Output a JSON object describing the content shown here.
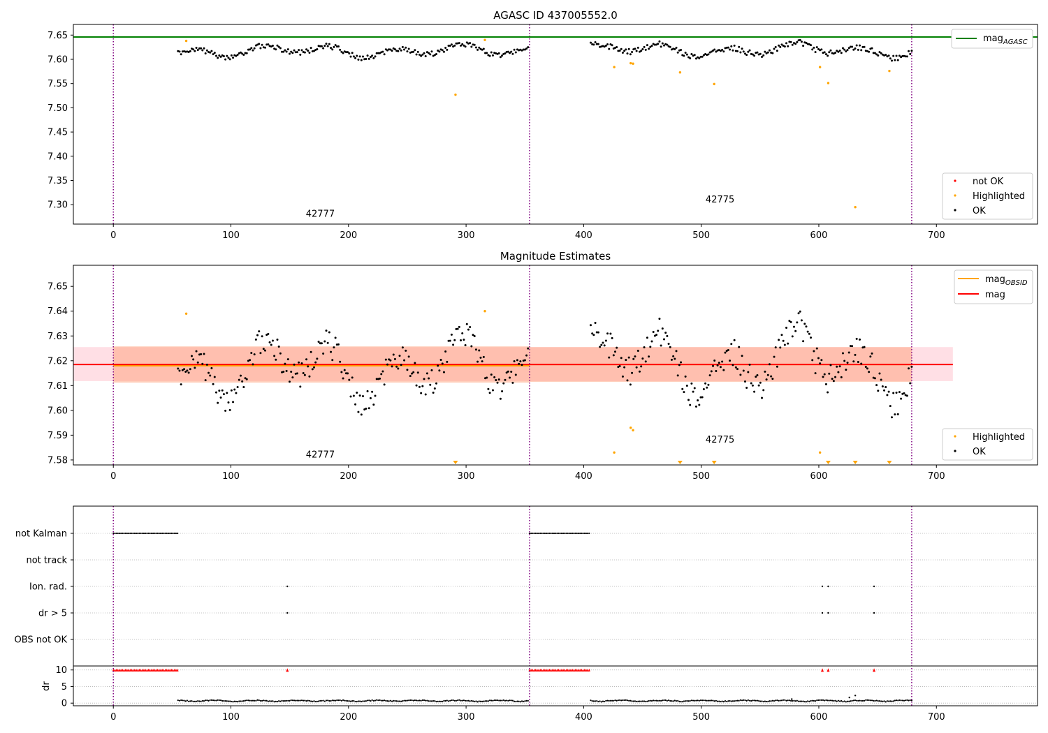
{
  "figure": {
    "title": "AGASC ID 437005552.0",
    "subtitle": "Magnitude Estimates"
  },
  "colors": {
    "ok": "#000000",
    "highlighted": "#ffa500",
    "not_ok": "#ff0000",
    "mag_agasc": "#008000",
    "mag_obsid": "#ffa500",
    "mag": "#ff0000",
    "obs_boundary": "#800080",
    "band_obsid": "#ffa07a",
    "band_mag": "#ffc0cb"
  },
  "chart_data": [
    {
      "type": "scatter",
      "title": "AGASC ID 437005552.0",
      "xlim": [
        -34,
        786
      ],
      "ylim": [
        7.26,
        7.672
      ],
      "xticks": [
        0,
        100,
        200,
        300,
        400,
        500,
        600,
        700
      ],
      "yticks": [
        7.3,
        7.35,
        7.4,
        7.45,
        7.5,
        7.55,
        7.6,
        7.65
      ],
      "legend_lines": [
        {
          "label": "mag",
          "sub": "AGASC"
        }
      ],
      "legend_markers": [
        "not OK",
        "Highlighted",
        "OK"
      ],
      "hlines": [
        {
          "name": "mag_AGASC",
          "y": 7.646
        }
      ],
      "obs_boundaries": [
        0,
        354,
        679
      ],
      "obs_labels": [
        {
          "text": "42777",
          "x": 176,
          "y": 7.275
        },
        {
          "text": "42775",
          "x": 516,
          "y": 7.305
        }
      ],
      "ok_segments": [
        {
          "x0": 55,
          "x1": 354,
          "step": 1.3,
          "base": 7.617,
          "amp": 0.009
        },
        {
          "x0": 406,
          "x1": 679,
          "step": 1.3,
          "base": 7.619,
          "amp": 0.01
        }
      ],
      "highlighted": [
        [
          62,
          7.638
        ],
        [
          291,
          7.527
        ],
        [
          316,
          7.64
        ],
        [
          426,
          7.584
        ],
        [
          440,
          7.592
        ],
        [
          442,
          7.591
        ],
        [
          482,
          7.573
        ],
        [
          511,
          7.549
        ],
        [
          601,
          7.584
        ],
        [
          608,
          7.551
        ],
        [
          631,
          7.295
        ],
        [
          660,
          7.576
        ]
      ]
    },
    {
      "type": "scatter",
      "title": "Magnitude Estimates",
      "xlim": [
        -34,
        786
      ],
      "ylim": [
        7.578,
        7.6585
      ],
      "xticks": [
        0,
        100,
        200,
        300,
        400,
        500,
        600,
        700
      ],
      "yticks": [
        7.58,
        7.59,
        7.6,
        7.61,
        7.62,
        7.63,
        7.64,
        7.65
      ],
      "legend_lines": [
        {
          "label": "mag",
          "sub": "OBSID"
        },
        {
          "label": "mag",
          "sub": ""
        }
      ],
      "legend_markers": [
        "Highlighted",
        "OK"
      ],
      "mag_line": {
        "y": 7.6185,
        "x0": -34,
        "x1": 714,
        "band": [
          7.6118,
          7.6255
        ]
      },
      "obsid_lines": [
        {
          "x0": 0,
          "x1": 354,
          "y": 7.618,
          "band": [
            7.6112,
            7.6258
          ]
        },
        {
          "x0": 354,
          "x1": 679,
          "y": 7.6185,
          "band": [
            7.6115,
            7.6255
          ]
        }
      ],
      "obs_boundaries": [
        0,
        354,
        679
      ],
      "obs_labels": [
        {
          "text": "42777",
          "x": 176,
          "y": 7.581
        },
        {
          "text": "42775",
          "x": 516,
          "y": 7.587
        }
      ],
      "ok_segments": [
        {
          "x0": 55,
          "x1": 354,
          "step": 1.3,
          "base": 7.617,
          "amp": 0.009
        },
        {
          "x0": 406,
          "x1": 679,
          "step": 1.3,
          "base": 7.619,
          "amp": 0.01
        }
      ],
      "highlighted": [
        [
          62,
          7.639
        ],
        [
          316,
          7.64
        ],
        [
          426,
          7.583
        ],
        [
          440,
          7.593
        ],
        [
          442,
          7.592
        ],
        [
          601,
          7.583
        ]
      ],
      "highlighted_offscale": [
        291,
        482,
        511,
        608,
        631,
        660
      ]
    },
    {
      "type": "scatter",
      "title": "",
      "xlim": [
        -34,
        786
      ],
      "xticks": [
        0,
        100,
        200,
        300,
        400,
        500,
        600,
        700
      ],
      "flag_rows": [
        "not Kalman",
        "not track",
        "Ion. rad.",
        "dr > 5",
        "OBS not OK"
      ],
      "flags": {
        "not Kalman": [
          [
            0,
            55
          ],
          [
            354,
            406
          ]
        ],
        "not track": [],
        "Ion. rad.": [
          148,
          603,
          608,
          647
        ],
        "dr > 5": [
          148,
          603,
          608,
          647
        ],
        "OBS not OK": []
      },
      "dr_axis": {
        "ylabel": "dr",
        "yticks": [
          0,
          5,
          10
        ],
        "ylim": [
          -0.8,
          11.2
        ],
        "clip": 10
      },
      "dr_red_segments": [
        [
          0,
          55
        ],
        [
          354,
          406
        ]
      ],
      "dr_red_points": [
        148,
        603,
        608,
        647
      ],
      "dr_ok_segments": [
        [
          55,
          354
        ],
        [
          406,
          679
        ]
      ],
      "dr_outliers": [
        [
          577,
          1.2
        ],
        [
          626,
          1.7
        ],
        [
          631,
          2.3
        ]
      ],
      "obs_boundaries": [
        0,
        354,
        679
      ]
    }
  ]
}
